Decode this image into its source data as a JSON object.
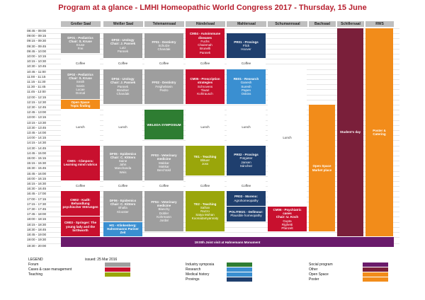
{
  "title": "Program at a glance - LMHI Homeopathic World Congress 2017 - Thursday, 15 June",
  "rooms": [
    "Großer Saal",
    "Weißer Saal",
    "Telemannsaal",
    "Händelsaal",
    "Mahlersaal",
    "Schumannsaal",
    "Bachsaal",
    "Schillersaal",
    "RWS"
  ],
  "times": [
    "08:45 - 09:00",
    "09:00 - 09:15",
    "09:15 - 09:30",
    "09:30 - 09:45",
    "09:45 - 10:00",
    "10:00 - 10:15",
    "10:15 - 10:30",
    "10:30 - 10:45",
    "10:45 - 11:00",
    "11:00 - 11:15",
    "11:15 - 11:30",
    "11:30 - 11:45",
    "11:45 - 12:00",
    "12:00 - 12:15",
    "12:15 - 12:30",
    "12:30 - 12:45",
    "12:45 - 13:00",
    "13:00 - 13:15",
    "13:15 - 13:30",
    "13:30 - 13:45",
    "13:45 - 14:00",
    "14:00 - 14:15",
    "14:15 - 14:30",
    "14:30 - 14:45",
    "14:45 - 15:00",
    "15:00 - 15:15",
    "15:15 - 15:30",
    "15:30 - 15:45",
    "15:45 - 16:00",
    "16:00 - 16:15",
    "16:15 - 16:30",
    "16:30 - 16:45",
    "16:45 - 17:00",
    "17:00 - 17:15",
    "17:15 - 17:30",
    "17:30 - 17:45",
    "17:45 - 18:00",
    "18:00 - 18:15",
    "18:15 - 18:30",
    "18:30 - 18:45",
    "18:45 - 19:00",
    "19:00 - 19:30",
    "19:30 - 20:00"
  ],
  "blocks": [
    {
      "title": "DF01 - Pediatrics\nChair: S. Kruse",
      "body": "Kruse\nFrei",
      "style": "grey"
    },
    {
      "title": "DF03 - Urology\nChair: J. Pannek",
      "body": "Lutz\nPannek",
      "style": "grey"
    },
    {
      "title": "FF01 - Dentistry",
      "body": "Schulze\nChandak",
      "style": "grey"
    },
    {
      "title": "CM04 - Autoimmune diseases",
      "body": "Fuchs\nChainmah\nBrunelli\nPannek",
      "style": "red"
    },
    {
      "title": "PR01 - Provings",
      "body": "Flick\nHoover",
      "style": "dblue"
    },
    {
      "title": "",
      "body": "Coffee",
      "style": "plain"
    },
    {
      "title": "",
      "body": "Coffee",
      "style": "plain"
    },
    {
      "title": "",
      "body": "Coffee",
      "style": "plain"
    },
    {
      "title": "",
      "body": "Coffee",
      "style": "plain"
    },
    {
      "title": "",
      "body": "Coffee",
      "style": "plain"
    },
    {
      "title": "DF02 - Pediatrics\nChair: S. Kruse",
      "body": "Smith\nIvanis\nLucae\nDorcal",
      "style": "grey"
    },
    {
      "title": "DF04 - Urology\nChair: J. Pannek",
      "body": "Pannek\nBündner\nChandak",
      "style": "grey"
    },
    {
      "title": "FF02 - Dentistry",
      "body": "Feighelstein\nPedro",
      "style": "grey"
    },
    {
      "title": "CM05 - Prescription strategies",
      "body": "Schrovens\nTiwari\nKohlrausch",
      "style": "red"
    },
    {
      "title": "RE01 - Research",
      "body": "Ganesh\nSuresh\nPapen\nOskins",
      "style": "lblue"
    },
    {
      "title": "Open Space\nTopic finding",
      "body": "",
      "style": "orange"
    },
    {
      "title": "",
      "body": "Lunch",
      "style": "plain"
    },
    {
      "title": "",
      "body": "Lunch",
      "style": "plain"
    },
    {
      "title": "WELEDA SYMPOSIUM",
      "body": "",
      "style": "green"
    },
    {
      "title": "",
      "body": "Lunch",
      "style": "plain"
    },
    {
      "title": "",
      "body": "Lunch",
      "style": "plain"
    },
    {
      "title": "",
      "body": "Lunch",
      "style": "plain"
    },
    {
      "title": "Open Space\nMarket place",
      "body": "",
      "style": "orange"
    },
    {
      "title": "Student's day",
      "body": "",
      "style": "maroon"
    },
    {
      "title": "Poster & Catering",
      "body": "",
      "style": "orange"
    },
    {
      "title": "CM01 - Câmpora:\nLearning mind rubrics",
      "body": "",
      "style": "red"
    },
    {
      "title": "DF05 - Epidemics\nChair: C. Klöters",
      "body": "Saine\nJahn\nManchanda\nWeis",
      "style": "grey"
    },
    {
      "title": "FF03 - Veterinary medicine",
      "body": "Makkar\nMakkar\nBerchtold",
      "style": "grey"
    },
    {
      "title": "TE1 - Teaching",
      "body": "Bläuer\nJoss",
      "style": "olive"
    },
    {
      "title": "PR02 - Provings",
      "body": "Potgieter\nJansen\nSánchez",
      "style": "dblue"
    },
    {
      "title": "",
      "body": "Coffee",
      "style": "plain"
    },
    {
      "title": "",
      "body": "Coffee",
      "style": "plain"
    },
    {
      "title": "",
      "body": "Coffee",
      "style": "plain"
    },
    {
      "title": "",
      "body": "Coffee",
      "style": "plain"
    },
    {
      "title": "",
      "body": "Coffee",
      "style": "plain"
    },
    {
      "title": "PR03 - Moreno:",
      "body": "Agrohomeopathy",
      "style": "dblue"
    },
    {
      "title": "CM02 - Kadlt: Behandlung psychischer Störungen",
      "body": "",
      "style": "red"
    },
    {
      "title": "DF06 - Epidemics\nChair: C. Klöters",
      "body": "Bhalla\nKlooster",
      "style": "grey"
    },
    {
      "title": "FF04 - Veterinary medicine",
      "body": "Blanchy\nDobler\nKohrmann\nJordal",
      "style": "grey"
    },
    {
      "title": "TE2 - Teaching",
      "body": "Safran\nRazzo\nSatya Mohan\nKoonadamyannaty",
      "style": "olive"
    },
    {
      "title": "POLIT0021 - Dellmour:",
      "body": "Plausible homeopathy",
      "style": "dblue"
    },
    {
      "title": "CM06 - Psychiatric cases\nChair: U. Koch",
      "body": "Gupta\nRighetti\nPfanzelt",
      "style": "red"
    },
    {
      "title": "CM03 - Springer: The\nyoung lady and the\nbirthworth",
      "body": "",
      "style": "red"
    },
    {
      "title": "HI1 - Klinkenberg:\nHahnemanns Pariser Zeit",
      "body": "",
      "style": "lblue"
    },
    {
      "title": "19:00h Joint visit at Hahnemann Monument",
      "body": "",
      "style": "purple"
    }
  ],
  "legend": {
    "heading": "LEGEND",
    "issued": "issued: 25 Mar 2016",
    "items": [
      {
        "label": "Forum",
        "color": "#9e9e9e"
      },
      {
        "label": "Cases & case management",
        "color": "#c8102e"
      },
      {
        "label": "Teaching",
        "color": "#9aa60a"
      },
      {
        "label": "Industry symposia",
        "color": "#2e7d32"
      },
      {
        "label": "Research",
        "color": "#3a8fd1"
      },
      {
        "label": "Medical history",
        "color": "#3a8fd1"
      },
      {
        "label": "Provings",
        "color": "#1f3f6e"
      },
      {
        "label": "Social program",
        "color": "#6a1b6b"
      },
      {
        "label": "Other",
        "color": "#7a1f3a"
      },
      {
        "label": "Open Space",
        "color": "#f28c1a"
      },
      {
        "label": "Poster",
        "color": "#f28c1a"
      }
    ]
  }
}
